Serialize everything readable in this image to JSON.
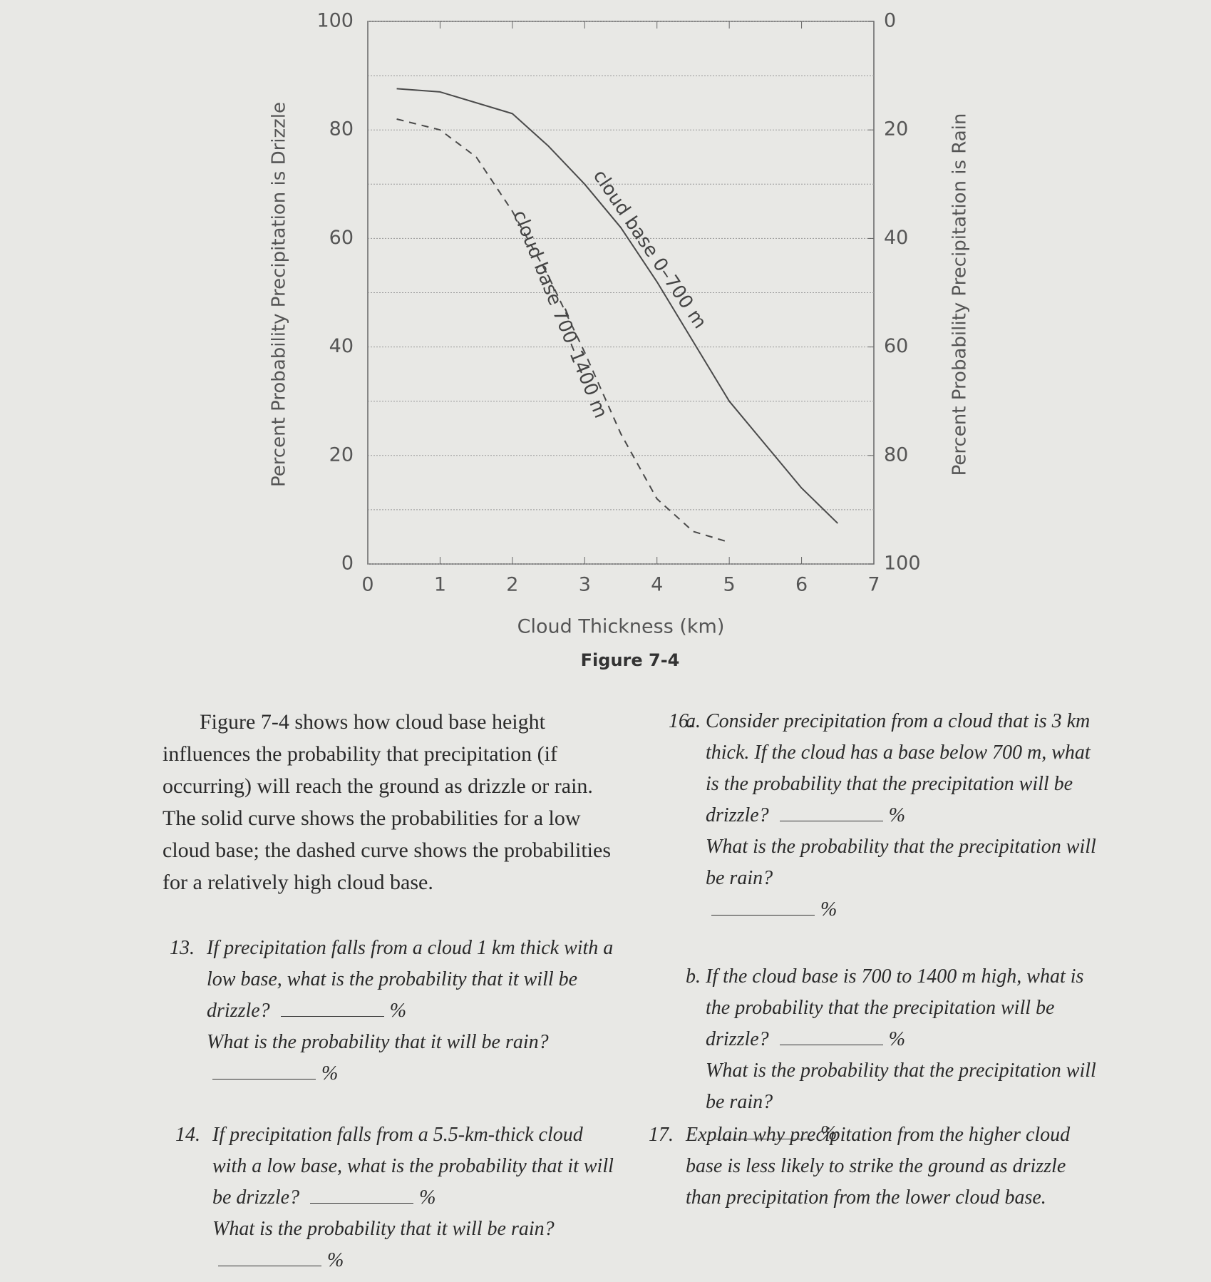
{
  "chart_data": {
    "type": "line",
    "caption": "Figure 7-4",
    "xlabel": "Cloud Thickness (km)",
    "ylabel": "Percent Probability Precipitation is Drizzle",
    "y2label": "Percent Probability Precipitation is Rain",
    "xlim": [
      0,
      7
    ],
    "xticks": [
      0,
      1,
      2,
      3,
      4,
      5,
      6,
      7
    ],
    "ylim": [
      0,
      100
    ],
    "yticks": [
      0,
      20,
      40,
      60,
      80,
      100
    ],
    "y_minor_ticks": [
      10,
      30,
      50,
      70,
      90
    ],
    "y2lim": [
      100,
      0
    ],
    "y2ticks": [
      0,
      20,
      40,
      60,
      80,
      100
    ],
    "grid": true,
    "series": [
      {
        "name": "cloud base 0–700 m",
        "color": "#4a4a4a",
        "dash": false,
        "x": [
          0.4,
          1,
          2,
          2.5,
          3,
          3.5,
          4,
          4.5,
          5,
          5.5,
          6,
          6.5
        ],
        "values": [
          87.6,
          87,
          83,
          77,
          70,
          62,
          52,
          41,
          30,
          22,
          14,
          7.5
        ]
      },
      {
        "name": "cloud base 700–1400 m",
        "color": "#4a4a4a",
        "dash": true,
        "x": [
          0.4,
          1,
          1.5,
          2,
          2.5,
          3,
          3.5,
          4,
          4.5,
          5
        ],
        "values": [
          82,
          80,
          75,
          65,
          53,
          39,
          24,
          12,
          6,
          4
        ]
      }
    ]
  },
  "intro": "Figure 7-4 shows how cloud base height influences the probability that precipitation (if occurring) will reach the ground as drizzle or rain. The solid curve shows the probabilities for a low cloud base; the dashed curve shows the probabilities for a relatively high cloud base.",
  "questions": [
    {
      "number": "13.",
      "parts": [
        {
          "text": "If precipitation falls from a cloud 1 km thick with a low base, what is the probability that it will be drizzle?",
          "unit": "%"
        },
        {
          "text": "What is the probability that it will be rain?",
          "unit": "%"
        }
      ]
    },
    {
      "number": "14.",
      "parts": [
        {
          "text": "If precipitation falls from a 5.5-km-thick cloud with a low base, what is the probability that it will be drizzle?",
          "unit": "%"
        },
        {
          "text": "What is the probability that it will be rain?",
          "unit": "%"
        }
      ]
    },
    {
      "number": "16.",
      "subs": [
        {
          "label": "a.",
          "parts": [
            {
              "text": "Consider precipitation from a cloud that is 3 km thick. If the cloud has a base below 700 m, what is the probability that the precipitation will be drizzle?",
              "unit": "%"
            },
            {
              "text": "What is the probability that the precipitation will be rain?",
              "unit": "%"
            }
          ]
        },
        {
          "label": "b.",
          "parts": [
            {
              "text": "If the cloud base is 700 to 1400 m high, what is the probability that the precipitation will be drizzle?",
              "unit": "%"
            },
            {
              "text": "What is the probability that the precipitation will be rain?",
              "unit": "%"
            }
          ]
        }
      ]
    },
    {
      "number": "17.",
      "parts": [
        {
          "text": "Explain why precipitation from the higher cloud base is less likely to strike the ground as drizzle than precipitation from the lower cloud base."
        }
      ]
    }
  ]
}
